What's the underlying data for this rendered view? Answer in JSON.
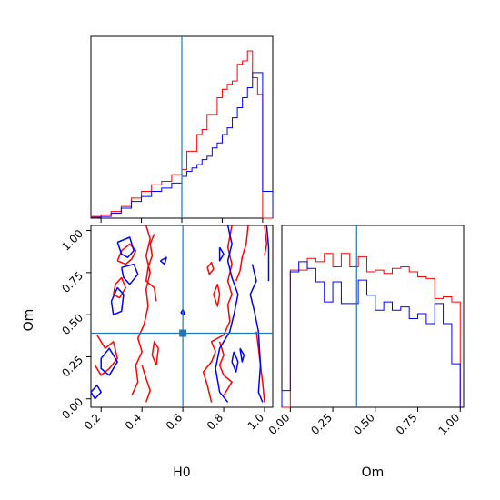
{
  "chart_data": {
    "type": "corner",
    "params": [
      "H0",
      "Om"
    ],
    "truth": {
      "H0": 0.6,
      "Om": 0.39
    },
    "colors": {
      "red": "#ff0000",
      "blue": "#0000ff",
      "truth": "#1f77b4",
      "axes": "#000000"
    },
    "panels": [
      {
        "id": "hist-h0",
        "type": "histogram",
        "param": "H0",
        "xlim": [
          0.15,
          1.05
        ],
        "bin_edges": [
          0.15,
          0.2,
          0.25,
          0.3,
          0.35,
          0.4,
          0.45,
          0.5,
          0.55,
          0.6,
          0.625,
          0.65,
          0.675,
          0.7,
          0.725,
          0.75,
          0.775,
          0.8,
          0.825,
          0.85,
          0.875,
          0.9,
          0.925,
          0.95,
          0.975,
          1.0,
          1.05
        ],
        "series": [
          {
            "color": "red",
            "heights": [
              0.01,
              0.02,
              0.04,
              0.07,
              0.12,
              0.16,
              0.2,
              0.22,
              0.26,
              0.29,
              0.4,
              0.4,
              0.5,
              0.53,
              0.62,
              0.62,
              0.72,
              0.77,
              0.8,
              0.82,
              0.92,
              0.94,
              1.0,
              0.84,
              0.74,
              0.0
            ]
          },
          {
            "color": "blue",
            "heights": [
              0.005,
              0.01,
              0.03,
              0.06,
              0.1,
              0.13,
              0.16,
              0.18,
              0.21,
              0.25,
              0.28,
              0.3,
              0.32,
              0.35,
              0.37,
              0.42,
              0.45,
              0.5,
              0.54,
              0.6,
              0.66,
              0.72,
              0.78,
              0.87,
              0.87,
              0.16
            ]
          }
        ]
      },
      {
        "id": "hist-om",
        "type": "histogram",
        "param": "Om",
        "xlim": [
          -0.05,
          1.02
        ],
        "bin_edges": [
          -0.05,
          0.0,
          0.05,
          0.1,
          0.15,
          0.2,
          0.25,
          0.3,
          0.35,
          0.4,
          0.45,
          0.5,
          0.55,
          0.6,
          0.65,
          0.7,
          0.75,
          0.8,
          0.85,
          0.9,
          0.95,
          1.0
        ],
        "series": [
          {
            "color": "red",
            "heights": [
              0.0,
              0.82,
              0.82,
              0.89,
              0.87,
              0.92,
              0.84,
              0.92,
              0.84,
              0.9,
              0.81,
              0.82,
              0.8,
              0.83,
              0.84,
              0.81,
              0.78,
              0.77,
              0.65,
              0.66,
              0.63
            ]
          },
          {
            "color": "blue",
            "heights": [
              0.1,
              0.81,
              0.87,
              0.83,
              0.75,
              0.63,
              0.75,
              0.62,
              0.62,
              0.76,
              0.67,
              0.58,
              0.63,
              0.58,
              0.6,
              0.53,
              0.56,
              0.5,
              0.62,
              0.5,
              0.26
            ]
          }
        ]
      },
      {
        "id": "contour-h0-om",
        "type": "contour",
        "xparam": "H0",
        "yparam": "Om",
        "xlim": [
          0.15,
          1.04
        ],
        "ylim": [
          -0.05,
          1.03
        ],
        "xticks": [
          "0.2",
          "0.4",
          "0.6",
          "0.8",
          "1.0"
        ],
        "yticks": [
          "0.00",
          "0.25",
          "0.50",
          "0.75",
          "1.00"
        ],
        "series": [
          {
            "color": "red",
            "lines": [
              [
                [
                  0.28,
                  0.82
                ],
                [
                  0.32,
                  0.8
                ],
                [
                  0.35,
                  0.83
                ],
                [
                  0.37,
                  0.88
                ],
                [
                  0.34,
                  0.92
                ],
                [
                  0.3,
                  0.88
                ],
                [
                  0.28,
                  0.82
                ]
              ],
              [
                [
                  0.26,
                  0.62
                ],
                [
                  0.29,
                  0.6
                ],
                [
                  0.32,
                  0.66
                ],
                [
                  0.3,
                  0.72
                ],
                [
                  0.27,
                  0.68
                ],
                [
                  0.26,
                  0.62
                ]
              ],
              [
                [
                  0.35,
                  0.02
                ],
                [
                  0.38,
                  0.1
                ],
                [
                  0.37,
                  0.2
                ],
                [
                  0.4,
                  0.28
                ],
                [
                  0.38,
                  0.36
                ],
                [
                  0.41,
                  0.44
                ],
                [
                  0.43,
                  0.55
                ],
                [
                  0.42,
                  0.65
                ],
                [
                  0.44,
                  0.75
                ],
                [
                  0.42,
                  0.85
                ],
                [
                  0.44,
                  0.95
                ],
                [
                  0.42,
                  1.03
                ]
              ],
              [
                [
                  0.46,
                  0.98
                ],
                [
                  0.44,
                  0.92
                ],
                [
                  0.45,
                  0.85
                ],
                [
                  0.43,
                  0.78
                ],
                [
                  0.42,
                  0.7
                ],
                [
                  0.46,
                  0.66
                ],
                [
                  0.47,
                  0.58
                ]
              ],
              [
                [
                  0.4,
                  0.2
                ],
                [
                  0.42,
                  0.12
                ],
                [
                  0.44,
                  0.05
                ],
                [
                  0.42,
                  -0.02
                ]
              ],
              [
                [
                  0.47,
                  0.2
                ],
                [
                  0.48,
                  0.3
                ],
                [
                  0.46,
                  0.34
                ],
                [
                  0.45,
                  0.26
                ],
                [
                  0.47,
                  0.2
                ]
              ],
              [
                [
                  0.18,
                  0.38
                ],
                [
                  0.22,
                  0.3
                ],
                [
                  0.26,
                  0.34
                ],
                [
                  0.28,
                  0.24
                ],
                [
                  0.24,
                  0.18
                ],
                [
                  0.2,
                  0.14
                ],
                [
                  0.17,
                  0.2
                ]
              ],
              [
                [
                  0.75,
                  0.62
                ],
                [
                  0.77,
                  0.68
                ],
                [
                  0.78,
                  0.62
                ],
                [
                  0.77,
                  0.55
                ],
                [
                  0.75,
                  0.62
                ]
              ],
              [
                [
                  0.72,
                  0.78
                ],
                [
                  0.74,
                  0.81
                ],
                [
                  0.75,
                  0.77
                ],
                [
                  0.73,
                  0.74
                ],
                [
                  0.72,
                  0.78
                ]
              ],
              [
                [
                  0.74,
                  -0.02
                ],
                [
                  0.72,
                  0.08
                ],
                [
                  0.7,
                  0.16
                ],
                [
                  0.74,
                  0.22
                ],
                [
                  0.76,
                  0.28
                ],
                [
                  0.74,
                  0.34
                ],
                [
                  0.8,
                  0.38
                ],
                [
                  0.83,
                  0.46
                ],
                [
                  0.82,
                  0.56
                ],
                [
                  0.84,
                  0.62
                ],
                [
                  0.82,
                  0.7
                ],
                [
                  0.84,
                  0.8
                ],
                [
                  0.82,
                  0.9
                ],
                [
                  0.84,
                  1.03
                ]
              ],
              [
                [
                  0.92,
                  1.03
                ],
                [
                  0.91,
                  0.92
                ],
                [
                  0.89,
                  0.84
                ],
                [
                  0.88,
                  0.76
                ],
                [
                  0.86,
                  0.7
                ]
              ],
              [
                [
                  0.78,
                  0.34
                ],
                [
                  0.8,
                  0.26
                ],
                [
                  0.78,
                  0.2
                ],
                [
                  0.8,
                  0.14
                ],
                [
                  0.84,
                  0.1
                ],
                [
                  0.8,
                  0.02
                ]
              ],
              [
                [
                  0.96,
                  0.4
                ],
                [
                  0.97,
                  0.3
                ],
                [
                  0.98,
                  0.2
                ],
                [
                  0.99,
                  0.1
                ],
                [
                  1.0,
                  -0.02
                ]
              ],
              [
                [
                  1.0,
                  1.03
                ],
                [
                  1.01,
                  0.92
                ],
                [
                  1.0,
                  0.85
                ]
              ]
            ]
          },
          {
            "color": "blue",
            "lines": [
              [
                [
                  0.28,
                  0.93
                ],
                [
                  0.34,
                  0.96
                ],
                [
                  0.36,
                  0.88
                ],
                [
                  0.33,
                  0.84
                ],
                [
                  0.3,
                  0.86
                ],
                [
                  0.28,
                  0.93
                ]
              ],
              [
                [
                  0.3,
                  0.78
                ],
                [
                  0.36,
                  0.8
                ],
                [
                  0.38,
                  0.74
                ],
                [
                  0.34,
                  0.68
                ],
                [
                  0.31,
                  0.72
                ],
                [
                  0.3,
                  0.78
                ]
              ],
              [
                [
                  0.25,
                  0.58
                ],
                [
                  0.28,
                  0.66
                ],
                [
                  0.31,
                  0.62
                ],
                [
                  0.3,
                  0.52
                ],
                [
                  0.26,
                  0.5
                ],
                [
                  0.25,
                  0.58
                ]
              ],
              [
                [
                  0.2,
                  0.24
                ],
                [
                  0.24,
                  0.3
                ],
                [
                  0.28,
                  0.22
                ],
                [
                  0.24,
                  0.14
                ],
                [
                  0.2,
                  0.18
                ],
                [
                  0.2,
                  0.24
                ]
              ],
              [
                [
                  0.15,
                  0.04
                ],
                [
                  0.18,
                  0.08
                ],
                [
                  0.2,
                  0.04
                ],
                [
                  0.17,
                  0.0
                ],
                [
                  0.15,
                  0.04
                ]
              ],
              [
                [
                  0.49,
                  0.82
                ],
                [
                  0.52,
                  0.84
                ],
                [
                  0.51,
                  0.8
                ],
                [
                  0.49,
                  0.82
                ]
              ],
              [
                [
                  0.59,
                  0.51
                ],
                [
                  0.6,
                  0.53
                ],
                [
                  0.61,
                  0.5
                ],
                [
                  0.59,
                  0.51
                ]
              ],
              [
                [
                  0.82,
                  1.03
                ],
                [
                  0.84,
                  0.92
                ],
                [
                  0.82,
                  0.82
                ],
                [
                  0.84,
                  0.72
                ],
                [
                  0.87,
                  0.62
                ],
                [
                  0.85,
                  0.5
                ],
                [
                  0.83,
                  0.4
                ],
                [
                  0.78,
                  0.3
                ],
                [
                  0.76,
                  0.18
                ],
                [
                  0.78,
                  0.04
                ],
                [
                  0.82,
                  -0.02
                ]
              ],
              [
                [
                  0.85,
                  0.28
                ],
                [
                  0.87,
                  0.22
                ],
                [
                  0.86,
                  0.16
                ],
                [
                  0.84,
                  0.22
                ],
                [
                  0.85,
                  0.28
                ]
              ],
              [
                [
                  0.88,
                  0.3
                ],
                [
                  0.9,
                  0.26
                ],
                [
                  0.89,
                  0.22
                ],
                [
                  0.88,
                  0.3
                ]
              ],
              [
                [
                  0.78,
                  0.9
                ],
                [
                  0.8,
                  0.86
                ],
                [
                  0.78,
                  0.82
                ],
                [
                  0.78,
                  0.9
                ]
              ],
              [
                [
                  0.94,
                  0.8
                ],
                [
                  0.96,
                  0.7
                ],
                [
                  0.93,
                  0.62
                ],
                [
                  0.95,
                  0.52
                ],
                [
                  0.97,
                  0.4
                ],
                [
                  0.98,
                  0.2
                ],
                [
                  0.97,
                  0.04
                ],
                [
                  0.99,
                  -0.02
                ]
              ],
              [
                [
                  1.01,
                  1.03
                ],
                [
                  1.02,
                  0.9
                ],
                [
                  1.02,
                  0.7
                ]
              ]
            ]
          }
        ]
      }
    ],
    "bottom_xticks": [
      "0.00",
      "0.25",
      "0.50",
      "0.75",
      "1.00"
    ],
    "bottom_xlim": [
      -0.05,
      1.02
    ],
    "labels": {
      "h0_xlabel": "H0",
      "om_xlabel": "Om",
      "om_ylabel": "Om"
    },
    "legend": "none",
    "grid": false
  }
}
